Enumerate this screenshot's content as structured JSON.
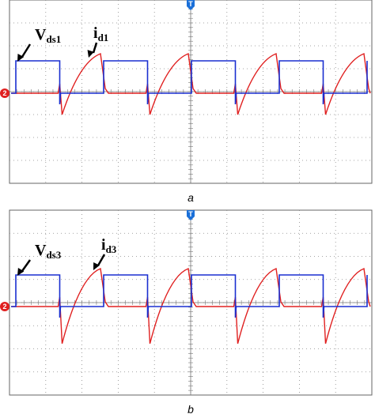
{
  "panels": [
    {
      "caption": "a",
      "markers": {
        "trigger": "T",
        "channel": "2"
      },
      "labels": [
        {
          "main": "V",
          "sub": "ds1"
        },
        {
          "main": "i",
          "sub": "d1"
        }
      ]
    },
    {
      "caption": "b",
      "markers": {
        "trigger": "T",
        "channel": "2"
      },
      "labels": [
        {
          "main": "V",
          "sub": "ds3"
        },
        {
          "main": "i",
          "sub": "d3"
        }
      ]
    }
  ]
}
